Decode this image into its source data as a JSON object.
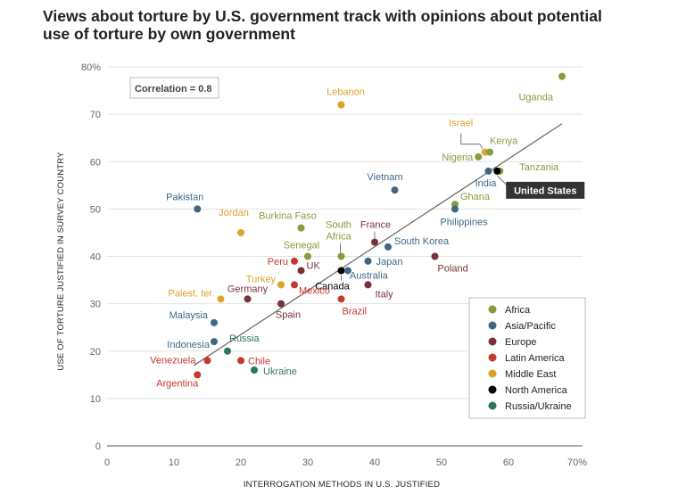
{
  "title": "Views about torture by U.S. government track with opinions about potential use of torture by own government",
  "correlation_label": "Correlation = 0.8",
  "chart_data": {
    "type": "scatter",
    "title": "Views about torture by U.S. government track with opinions about potential use of torture by own government",
    "xlabel": "INTERROGATION METHODS IN U.S. JUSTIFIED",
    "ylabel": "USE OF TORTURE JUSTIFIED IN SURVEY COUNTRY",
    "xlim": [
      0,
      70
    ],
    "ylim": [
      0,
      80
    ],
    "x_ticks": [
      "0",
      "10",
      "20",
      "30",
      "40",
      "50",
      "60",
      "70%"
    ],
    "y_ticks": [
      "0",
      "10",
      "20",
      "30",
      "40",
      "50",
      "60",
      "70",
      "80%"
    ],
    "trendline": {
      "from": [
        13,
        17
      ],
      "to": [
        68,
        68
      ]
    },
    "legend": [
      {
        "name": "Africa",
        "color": "#8a9a3e"
      },
      {
        "name": "Asia/Pacific",
        "color": "#3f6784"
      },
      {
        "name": "Europe",
        "color": "#7a3039"
      },
      {
        "name": "Latin America",
        "color": "#c4392e"
      },
      {
        "name": "Middle East",
        "color": "#d9a429"
      },
      {
        "name": "North America",
        "color": "#000000"
      },
      {
        "name": "Russia/Ukraine",
        "color": "#2b7566"
      }
    ],
    "points": [
      {
        "label": "Uganda",
        "x": 68,
        "y": 78,
        "region": "Africa"
      },
      {
        "label": "Lebanon",
        "x": 35,
        "y": 72,
        "region": "Middle East"
      },
      {
        "label": "Israel",
        "x": 56.5,
        "y": 62,
        "region": "Middle East"
      },
      {
        "label": "Kenya",
        "x": 57.2,
        "y": 62,
        "region": "Africa"
      },
      {
        "label": "Nigeria",
        "x": 55.5,
        "y": 61,
        "region": "Africa"
      },
      {
        "label": "India",
        "x": 57,
        "y": 58,
        "region": "Asia/Pacific"
      },
      {
        "label": "Tanzania",
        "x": 58.7,
        "y": 58,
        "region": "Africa"
      },
      {
        "label": "United States",
        "x": 58.3,
        "y": 58,
        "region": "North America"
      },
      {
        "label": "Vietnam",
        "x": 43,
        "y": 54,
        "region": "Asia/Pacific"
      },
      {
        "label": "Pakistan",
        "x": 13.5,
        "y": 50,
        "region": "Asia/Pacific"
      },
      {
        "label": "Ghana",
        "x": 52,
        "y": 51,
        "region": "Africa"
      },
      {
        "label": "Philippines",
        "x": 52,
        "y": 50,
        "region": "Asia/Pacific"
      },
      {
        "label": "Burkina Faso",
        "x": 29,
        "y": 46,
        "region": "Africa"
      },
      {
        "label": "Jordan",
        "x": 20,
        "y": 45,
        "region": "Middle East"
      },
      {
        "label": "France",
        "x": 40,
        "y": 43,
        "region": "Europe"
      },
      {
        "label": "South Korea",
        "x": 42,
        "y": 42,
        "region": "Asia/Pacific"
      },
      {
        "label": "South Africa",
        "x": 35,
        "y": 40,
        "region": "Africa"
      },
      {
        "label": "Senegal",
        "x": 30,
        "y": 40,
        "region": "Africa"
      },
      {
        "label": "Poland",
        "x": 49,
        "y": 40,
        "region": "Europe"
      },
      {
        "label": "Peru",
        "x": 28,
        "y": 39,
        "region": "Latin America"
      },
      {
        "label": "UK",
        "x": 29,
        "y": 37,
        "region": "Europe"
      },
      {
        "label": "Japan",
        "x": 39,
        "y": 39,
        "region": "Asia/Pacific"
      },
      {
        "label": "Canada",
        "x": 35,
        "y": 37,
        "region": "North America"
      },
      {
        "label": "Australia",
        "x": 36,
        "y": 37,
        "region": "Asia/Pacific"
      },
      {
        "label": "Turkey",
        "x": 26,
        "y": 34,
        "region": "Middle East"
      },
      {
        "label": "Mexico",
        "x": 28,
        "y": 34,
        "region": "Latin America"
      },
      {
        "label": "Italy",
        "x": 39,
        "y": 34,
        "region": "Europe"
      },
      {
        "label": "Brazil",
        "x": 35,
        "y": 31,
        "region": "Latin America"
      },
      {
        "label": "Germany",
        "x": 21,
        "y": 31,
        "region": "Europe"
      },
      {
        "label": "Palest. ter.",
        "x": 17,
        "y": 31,
        "region": "Middle East"
      },
      {
        "label": "Spain",
        "x": 26,
        "y": 30,
        "region": "Europe"
      },
      {
        "label": "Malaysia",
        "x": 16,
        "y": 26,
        "region": "Asia/Pacific"
      },
      {
        "label": "Indonesia",
        "x": 16,
        "y": 22,
        "region": "Asia/Pacific"
      },
      {
        "label": "Russia",
        "x": 18,
        "y": 20,
        "region": "Russia/Ukraine"
      },
      {
        "label": "Venezuela",
        "x": 15,
        "y": 18,
        "region": "Latin America"
      },
      {
        "label": "Chile",
        "x": 20,
        "y": 18,
        "region": "Latin America"
      },
      {
        "label": "Ukraine",
        "x": 22,
        "y": 16,
        "region": "Russia/Ukraine"
      },
      {
        "label": "Argentina",
        "x": 13.5,
        "y": 15,
        "region": "Latin America"
      }
    ]
  }
}
